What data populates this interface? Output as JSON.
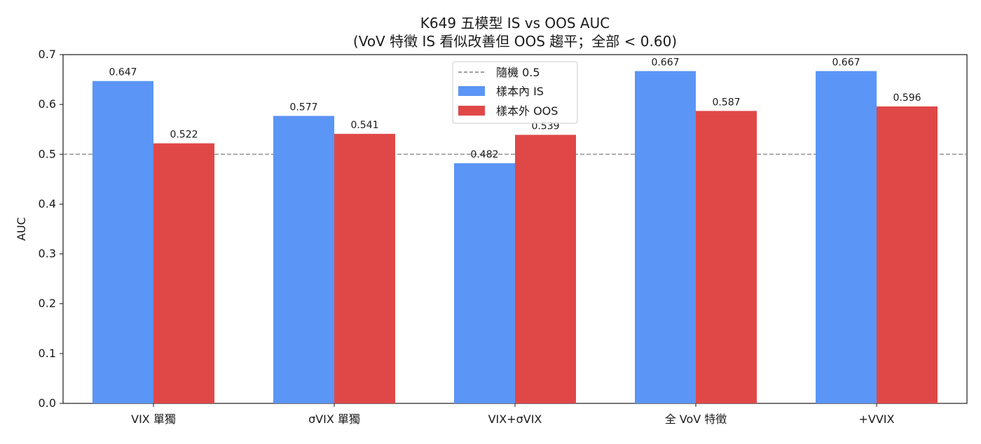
{
  "chart_data": {
    "type": "bar",
    "title": "K649 五模型 IS vs OOS AUC",
    "subtitle": "(VoV 特徵 IS 看似改善但 OOS 趨平；全部 < 0.60)",
    "xlabel": "",
    "ylabel": "AUC",
    "ylim": [
      0.0,
      0.7
    ],
    "yticks": [
      "0.0",
      "0.1",
      "0.2",
      "0.3",
      "0.4",
      "0.5",
      "0.6",
      "0.7"
    ],
    "categories": [
      "VIX 單獨",
      "σVIX 單獨",
      "VIX+σVIX",
      "全 VoV 特徵",
      "+VVIX"
    ],
    "series": [
      {
        "name": "樣本內 IS",
        "values": [
          0.647,
          0.577,
          0.482,
          0.667,
          0.667
        ],
        "labels": [
          "0.647",
          "0.577",
          "0.482",
          "0.667",
          "0.667"
        ],
        "color": "#5b95f5"
      },
      {
        "name": "樣本外 OOS",
        "values": [
          0.522,
          0.541,
          0.539,
          0.587,
          0.596
        ],
        "labels": [
          "0.522",
          "0.541",
          "0.539",
          "0.587",
          "0.596"
        ],
        "color": "#e04848"
      }
    ],
    "reference_line": {
      "name": "隨機 0.5",
      "value": 0.5,
      "color": "#808080",
      "style": "dashed"
    },
    "legend": {
      "placement": "top-center"
    },
    "grid": false
  }
}
